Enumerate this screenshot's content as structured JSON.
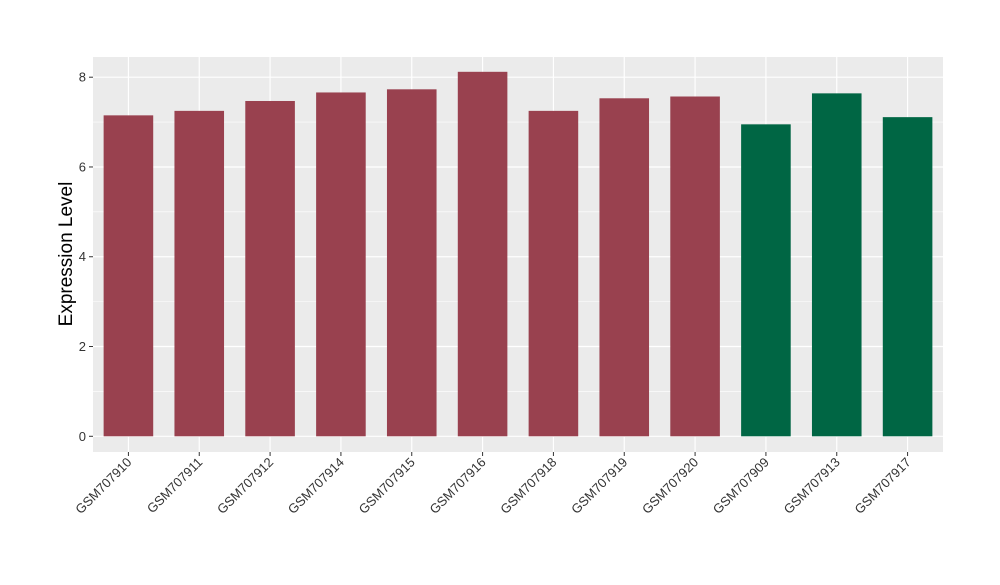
{
  "chart_data": {
    "type": "bar",
    "title": "",
    "xlabel": "",
    "ylabel": "Expression Level",
    "ylim": [
      -0.35,
      8.45
    ],
    "yticks": [
      0,
      2,
      4,
      6,
      8
    ],
    "grid": true,
    "legend": "none",
    "categories": [
      "GSM707910",
      "GSM707911",
      "GSM707912",
      "GSM707914",
      "GSM707915",
      "GSM707916",
      "GSM707918",
      "GSM707919",
      "GSM707920",
      "GSM707909",
      "GSM707913",
      "GSM707917"
    ],
    "values": [
      7.15,
      7.25,
      7.47,
      7.66,
      7.73,
      8.12,
      7.25,
      7.53,
      7.57,
      6.95,
      7.64,
      7.11
    ],
    "groups": [
      "a",
      "a",
      "a",
      "a",
      "a",
      "a",
      "a",
      "a",
      "a",
      "b",
      "b",
      "b"
    ],
    "colors": {
      "a": "#99414f",
      "b": "#006644",
      "panel": "#ebebeb",
      "grid": "#ffffff"
    }
  }
}
